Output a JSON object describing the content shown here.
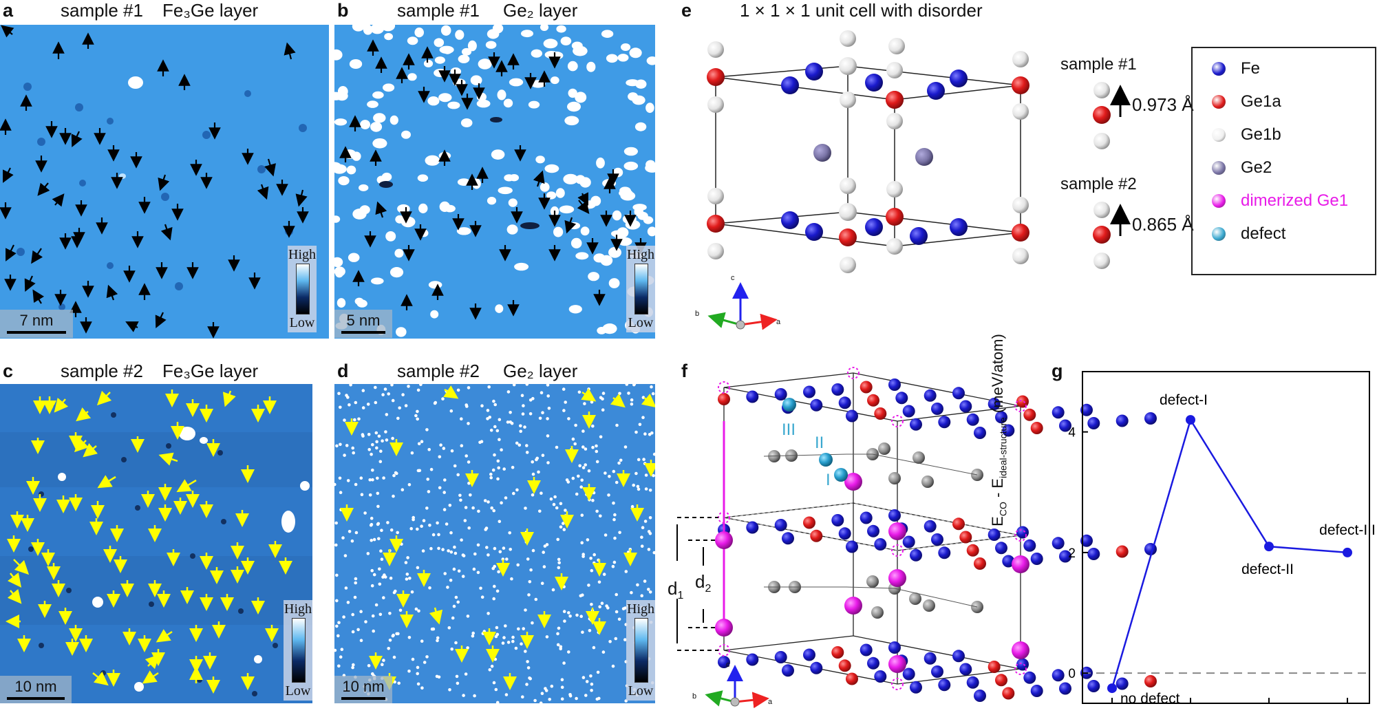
{
  "panels": {
    "a": {
      "letter": "a",
      "sample": "sample #1",
      "layer": "Fe₃Ge layer",
      "scale": "7 nm",
      "high": "High",
      "low": "Low"
    },
    "b": {
      "letter": "b",
      "sample": "sample #1",
      "layer": "Ge₂ layer",
      "scale": "5 nm",
      "high": "High",
      "low": "Low"
    },
    "c": {
      "letter": "c",
      "sample": "sample #2",
      "layer": "Fe₃Ge layer",
      "scale": "10 nm",
      "high": "High",
      "low": "Low"
    },
    "d": {
      "letter": "d",
      "sample": "sample #2",
      "layer": "Ge₂ layer",
      "scale": "10 nm",
      "high": "High",
      "low": "Low"
    },
    "e": {
      "letter": "e",
      "title": "1 × 1 × 1 unit cell with disorder"
    },
    "f": {
      "letter": "f"
    },
    "g": {
      "letter": "g"
    }
  },
  "panel_e": {
    "sample1": {
      "label": "sample #1",
      "displacement": "0.973 Å"
    },
    "sample2": {
      "label": "sample #2",
      "displacement": "0.865 Å"
    },
    "axes": {
      "c": "c",
      "b": "b",
      "a": "a"
    }
  },
  "legend": [
    {
      "label": "Fe",
      "color": "#1a1acc",
      "text_color": "#111111"
    },
    {
      "label": "Ge1a",
      "color": "#e01b1b",
      "text_color": "#111111"
    },
    {
      "label": "Ge1b",
      "color": "#f0f0f0",
      "text_color": "#111111"
    },
    {
      "label": "Ge2",
      "color": "#7a74a6",
      "text_color": "#111111"
    },
    {
      "label": "dimerized Ge1",
      "color": "#e81be8",
      "text_color": "#e81be8"
    },
    {
      "label": "defect",
      "color": "#3aa8cf",
      "text_color": "#111111"
    }
  ],
  "panel_f": {
    "defects": {
      "I": "I",
      "II": "II",
      "III": "III"
    },
    "d1": "d",
    "d1_sub": "1",
    "d2": "d",
    "d2_sub": "2",
    "axes": {
      "c": "c",
      "b": "b",
      "a": "a"
    }
  },
  "chart_data": {
    "type": "line",
    "ylabel_main": "E",
    "ylabel_sub1": "CO",
    "ylabel_mid": " - E",
    "ylabel_sub2": "ideal-structure",
    "ylabel_unit": " (meV/atom)",
    "xlabel": "",
    "categories": [
      "no defect",
      "defect-I",
      "defect-II",
      "defect-III"
    ],
    "values": [
      -0.25,
      4.2,
      2.1,
      2.0
    ],
    "ylim": [
      -0.5,
      5.0
    ],
    "yticks": [
      "0",
      "2",
      "4"
    ],
    "reference_line": 0,
    "color": "#1a1ae0"
  }
}
